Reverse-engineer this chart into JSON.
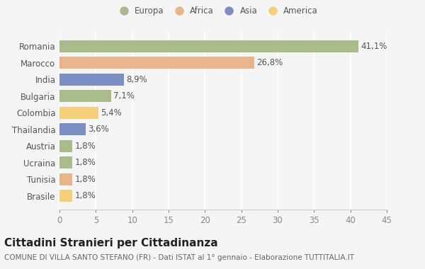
{
  "categories": [
    "Romania",
    "Marocco",
    "India",
    "Bulgaria",
    "Colombia",
    "Thailandia",
    "Austria",
    "Ucraina",
    "Tunisia",
    "Brasile"
  ],
  "values": [
    41.1,
    26.8,
    8.9,
    7.1,
    5.4,
    3.6,
    1.8,
    1.8,
    1.8,
    1.8
  ],
  "labels": [
    "41,1%",
    "26,8%",
    "8,9%",
    "7,1%",
    "5,4%",
    "3,6%",
    "1,8%",
    "1,8%",
    "1,8%",
    "1,8%"
  ],
  "colors": [
    "#a8bb8a",
    "#e8b48a",
    "#7b8fc4",
    "#a8bb8a",
    "#f5d07a",
    "#7b8fc4",
    "#a8bb8a",
    "#a8bb8a",
    "#e8b48a",
    "#f5d07a"
  ],
  "legend": [
    {
      "label": "Europa",
      "color": "#a8bb8a"
    },
    {
      "label": "Africa",
      "color": "#e8b48a"
    },
    {
      "label": "Asia",
      "color": "#7b8fc4"
    },
    {
      "label": "America",
      "color": "#f5d07a"
    }
  ],
  "title": "Cittadini Stranieri per Cittadinanza",
  "subtitle": "COMUNE DI VILLA SANTO STEFANO (FR) - Dati ISTAT al 1° gennaio - Elaborazione TUTTITALIA.IT",
  "xlim": [
    0,
    45
  ],
  "xticks": [
    0,
    5,
    10,
    15,
    20,
    25,
    30,
    35,
    40,
    45
  ],
  "background_color": "#f5f5f5",
  "bar_height": 0.72,
  "grid_color": "#ffffff",
  "title_fontsize": 11,
  "subtitle_fontsize": 7.5,
  "label_fontsize": 8.5,
  "tick_fontsize": 8.5,
  "legend_fontsize": 8.5
}
